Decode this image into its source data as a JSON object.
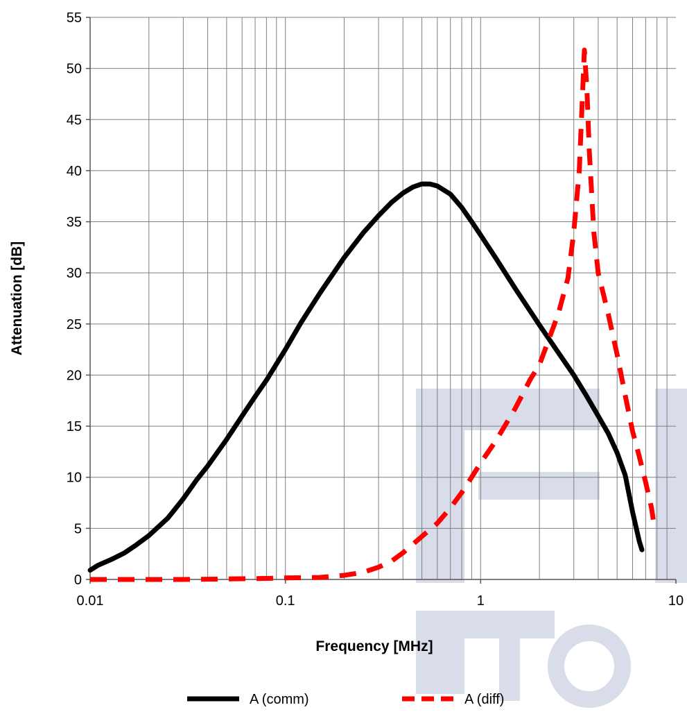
{
  "chart_data": {
    "type": "line",
    "xscale": "log",
    "xlim": [
      0.01,
      10
    ],
    "ylim": [
      0,
      55
    ],
    "grid": true,
    "xlabel": "Frequency [MHz]",
    "ylabel": "Attenuation [dB]",
    "x_tick_labels": [
      "0.01",
      "0.1",
      "1",
      "10"
    ],
    "x_tick_values": [
      0.01,
      0.1,
      1,
      10
    ],
    "y_tick_labels": [
      "0",
      "5",
      "10",
      "15",
      "20",
      "25",
      "30",
      "35",
      "40",
      "45",
      "50",
      "55"
    ],
    "y_tick_values": [
      0,
      5,
      10,
      15,
      20,
      25,
      30,
      35,
      40,
      45,
      50,
      55
    ],
    "legend_position": "bottom",
    "series": [
      {
        "name": "A (comm)",
        "color": "#000000",
        "style": "solid",
        "points": [
          [
            0.01,
            0.9
          ],
          [
            0.011,
            1.4
          ],
          [
            0.013,
            2.0
          ],
          [
            0.015,
            2.6
          ],
          [
            0.017,
            3.3
          ],
          [
            0.02,
            4.3
          ],
          [
            0.025,
            6.0
          ],
          [
            0.03,
            7.9
          ],
          [
            0.035,
            9.7
          ],
          [
            0.04,
            11.1
          ],
          [
            0.05,
            13.7
          ],
          [
            0.06,
            16.0
          ],
          [
            0.07,
            17.9
          ],
          [
            0.08,
            19.5
          ],
          [
            0.1,
            22.5
          ],
          [
            0.12,
            25.1
          ],
          [
            0.15,
            28.0
          ],
          [
            0.2,
            31.5
          ],
          [
            0.25,
            33.9
          ],
          [
            0.3,
            35.6
          ],
          [
            0.35,
            36.9
          ],
          [
            0.4,
            37.8
          ],
          [
            0.45,
            38.4
          ],
          [
            0.5,
            38.7
          ],
          [
            0.55,
            38.7
          ],
          [
            0.6,
            38.5
          ],
          [
            0.7,
            37.7
          ],
          [
            0.8,
            36.4
          ],
          [
            0.9,
            35.0
          ],
          [
            1.0,
            33.7
          ],
          [
            1.2,
            31.4
          ],
          [
            1.5,
            28.5
          ],
          [
            2.0,
            24.9
          ],
          [
            2.5,
            22.2
          ],
          [
            3.0,
            20.0
          ],
          [
            3.5,
            17.9
          ],
          [
            4.0,
            16.0
          ],
          [
            4.5,
            14.3
          ],
          [
            5.0,
            12.4
          ],
          [
            5.5,
            10.2
          ],
          [
            6.0,
            6.6
          ],
          [
            6.5,
            3.7
          ],
          [
            6.7,
            2.9
          ]
        ]
      },
      {
        "name": "A (diff)",
        "color": "#ff0000",
        "style": "dashed",
        "points": [
          [
            0.01,
            0.0
          ],
          [
            0.03,
            0.0
          ],
          [
            0.05,
            0.05
          ],
          [
            0.08,
            0.1
          ],
          [
            0.1,
            0.15
          ],
          [
            0.15,
            0.2
          ],
          [
            0.2,
            0.4
          ],
          [
            0.25,
            0.7
          ],
          [
            0.3,
            1.2
          ],
          [
            0.35,
            1.8
          ],
          [
            0.4,
            2.6
          ],
          [
            0.5,
            4.2
          ],
          [
            0.6,
            5.5
          ],
          [
            0.7,
            7.0
          ],
          [
            0.8,
            8.5
          ],
          [
            0.9,
            10.0
          ],
          [
            1.0,
            11.4
          ],
          [
            1.2,
            13.6
          ],
          [
            1.5,
            16.7
          ],
          [
            1.8,
            19.6
          ],
          [
            2.0,
            21.0
          ],
          [
            2.5,
            26.0
          ],
          [
            2.8,
            29.5
          ],
          [
            3.0,
            34.0
          ],
          [
            3.2,
            40.0
          ],
          [
            3.3,
            46.0
          ],
          [
            3.4,
            51.8
          ],
          [
            3.5,
            48.0
          ],
          [
            3.6,
            42.0
          ],
          [
            3.8,
            34.0
          ],
          [
            4.0,
            30.0
          ],
          [
            4.5,
            26.0
          ],
          [
            5.0,
            22.0
          ],
          [
            5.5,
            18.0
          ],
          [
            6.0,
            14.5
          ],
          [
            6.5,
            12.0
          ],
          [
            7.0,
            9.5
          ],
          [
            7.5,
            7.0
          ],
          [
            7.8,
            4.8
          ]
        ]
      }
    ]
  }
}
